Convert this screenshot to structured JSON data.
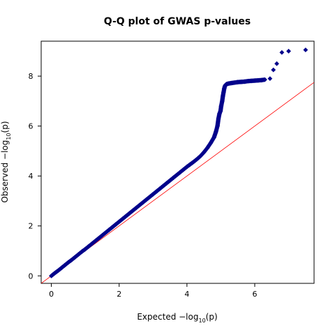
{
  "chart_data": {
    "type": "scatter",
    "title": "Q-Q plot of GWAS p-values",
    "xlabel": {
      "prefix": "Expected  −log",
      "sub": "10",
      "suffix": "(p)"
    },
    "ylabel": {
      "prefix": "Observed  −log",
      "sub": "10",
      "suffix": "(p)"
    },
    "xlim": [
      -0.3,
      7.75
    ],
    "ylim": [
      -0.3,
      9.4
    ],
    "xticks": [
      0,
      2,
      4,
      6
    ],
    "yticks": [
      0,
      2,
      4,
      6,
      8
    ],
    "grid": false,
    "legend": "none",
    "marker_color": "#00008b",
    "reference_line_color": "#ff0000",
    "reference_line": {
      "slope": 1,
      "intercept": 0
    },
    "series": [
      {
        "x": [
          0.0,
          0.1,
          0.2,
          0.3,
          0.4,
          0.5,
          0.6,
          0.7,
          0.8,
          0.9,
          1.0,
          1.1,
          1.2,
          1.3,
          1.4,
          1.5,
          1.6,
          1.7,
          1.8,
          1.9,
          2.0,
          2.1,
          2.2,
          2.3,
          2.4,
          2.5,
          2.6,
          2.7,
          2.8,
          2.9,
          3.0,
          3.1,
          3.2,
          3.3,
          3.4,
          3.5,
          3.6,
          3.7,
          3.8,
          3.9,
          4.0,
          4.1,
          4.2,
          4.3,
          4.4,
          4.5,
          4.6,
          4.7,
          4.8,
          4.85,
          4.9,
          4.93,
          4.96,
          4.99,
          5.01,
          5.04,
          5.06,
          5.08,
          5.1,
          5.12,
          5.14,
          5.17,
          5.22,
          5.3,
          5.4,
          5.5,
          5.6,
          5.7,
          5.8,
          5.9,
          6.0,
          6.1,
          6.2,
          6.3,
          6.45,
          6.55,
          6.65,
          6.8,
          7.0,
          7.5
        ],
        "y": [
          0.0,
          0.11,
          0.21,
          0.32,
          0.43,
          0.54,
          0.64,
          0.75,
          0.86,
          0.97,
          1.07,
          1.18,
          1.29,
          1.4,
          1.51,
          1.62,
          1.73,
          1.84,
          1.95,
          2.06,
          2.17,
          2.28,
          2.39,
          2.5,
          2.61,
          2.72,
          2.83,
          2.94,
          3.05,
          3.16,
          3.27,
          3.38,
          3.49,
          3.6,
          3.71,
          3.82,
          3.93,
          4.04,
          4.15,
          4.26,
          4.37,
          4.47,
          4.57,
          4.68,
          4.8,
          4.95,
          5.12,
          5.32,
          5.55,
          5.75,
          6.0,
          6.3,
          6.5,
          6.6,
          6.8,
          7.0,
          7.2,
          7.35,
          7.5,
          7.6,
          7.65,
          7.68,
          7.7,
          7.72,
          7.74,
          7.76,
          7.77,
          7.78,
          7.8,
          7.81,
          7.82,
          7.83,
          7.84,
          7.86,
          7.9,
          8.25,
          8.5,
          8.95,
          9.0,
          9.05
        ]
      }
    ]
  }
}
